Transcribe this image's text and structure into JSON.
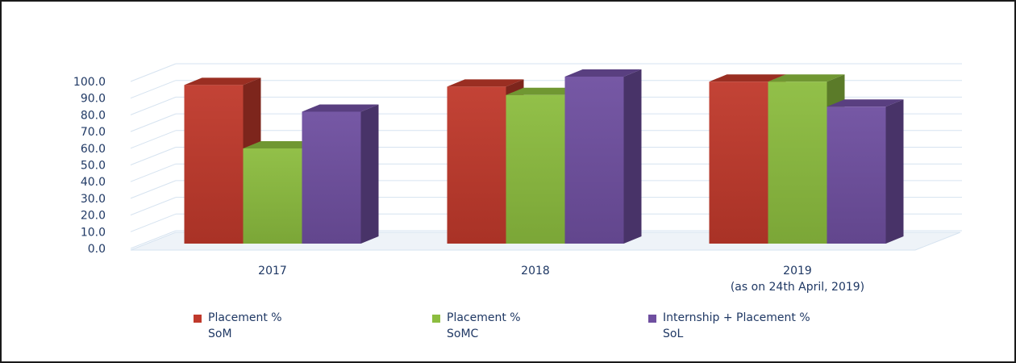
{
  "chart_data": {
    "type": "bar",
    "categories": [
      "2017",
      "2018",
      "2019\n(as on 24th April, 2019)"
    ],
    "series": [
      {
        "name": "Placement %\nSoM",
        "values": [
          95,
          94,
          97
        ],
        "color": "#c0392b"
      },
      {
        "name": "Placement %\nSoMC",
        "values": [
          57,
          89,
          97
        ],
        "color": "#8cbd3f"
      },
      {
        "name": "Internship + Placement %\nSoL",
        "values": [
          79,
          100,
          82
        ],
        "color": "#6f4fa0"
      }
    ],
    "yticks": [
      "0.0",
      "10.0",
      "20.0",
      "30.0",
      "40.0",
      "50.0",
      "60.0",
      "70.0",
      "80.0",
      "90.0",
      "100.0"
    ],
    "ylim": [
      0,
      100
    ],
    "grid": true,
    "legend_position": "bottom",
    "style": "3d-clustered-column"
  }
}
